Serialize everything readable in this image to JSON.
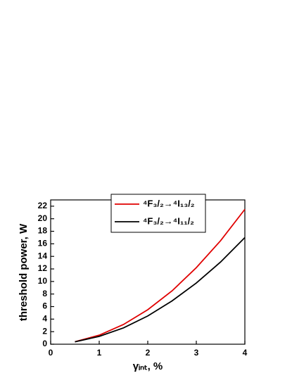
{
  "chart_data": {
    "type": "line",
    "x_label": "γᵢₙₜ, %",
    "y_label": "threshold power, W",
    "x": [
      0.5,
      1,
      1.5,
      2,
      2.5,
      3,
      3.5,
      4
    ],
    "series": [
      {
        "name": "⁴F₃/₂→⁴I₁₃/₂",
        "color": "#e00000",
        "values": [
          0.39,
          1.44,
          3.14,
          5.5,
          8.5,
          12.2,
          16.5,
          21.5
        ]
      },
      {
        "name": "⁴F₃/₂→⁴I₁₁/₂",
        "color": "#000000",
        "values": [
          0.38,
          1.25,
          2.6,
          4.5,
          6.9,
          9.75,
          13.1,
          17
        ]
      }
    ],
    "xlim": [
      0,
      4
    ],
    "xticks": [
      0,
      1,
      2,
      3,
      4
    ],
    "ylim": [
      0,
      23
    ],
    "yticks": [
      0,
      2,
      4,
      6,
      8,
      10,
      12,
      14,
      16,
      18,
      20,
      22
    ],
    "legend": "top-center"
  }
}
